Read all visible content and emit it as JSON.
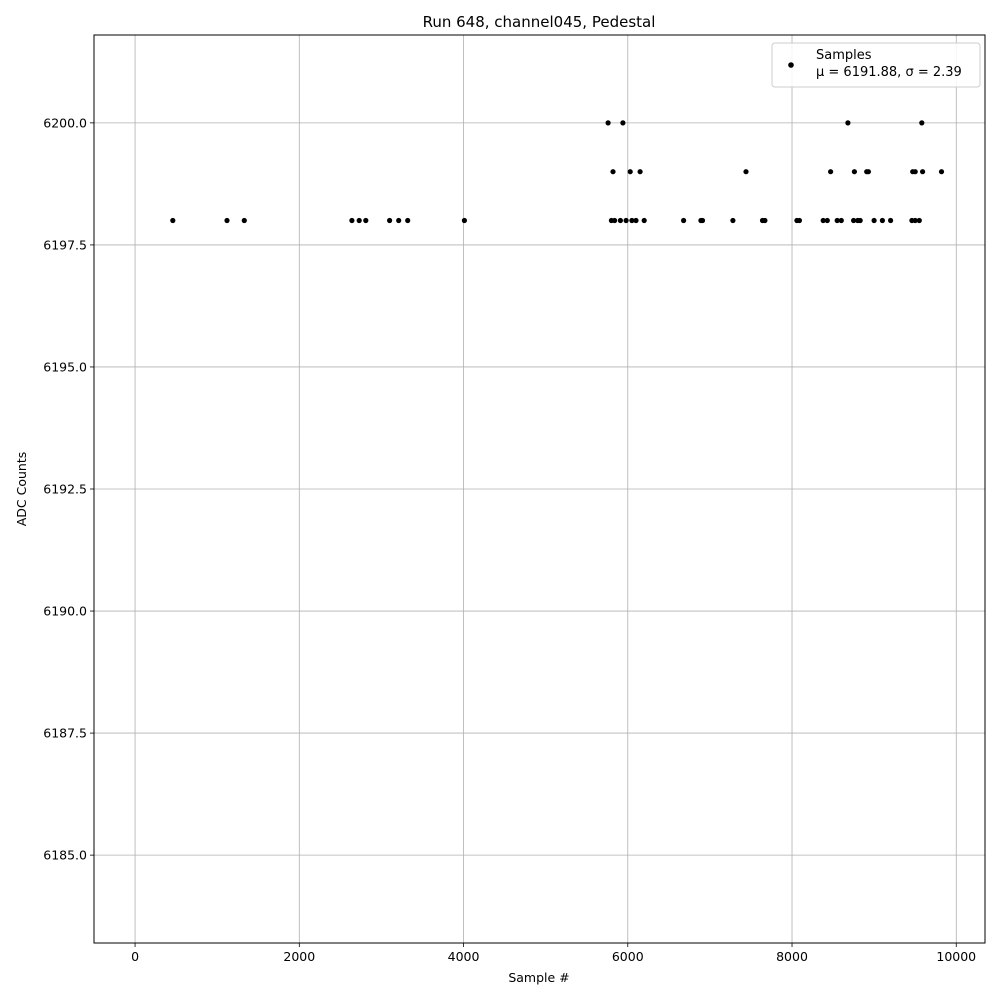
{
  "chart_data": {
    "type": "scatter",
    "title": "Run 648, channel045, Pedestal",
    "xlabel": "Sample #",
    "ylabel": "ADC Counts",
    "xlim": [
      -500,
      10350
    ],
    "ylim": [
      6183.2,
      6201.8
    ],
    "xticks": [
      0,
      2000,
      4000,
      6000,
      8000,
      10000
    ],
    "yticks": [
      6185.0,
      6187.5,
      6190.0,
      6192.5,
      6195.0,
      6197.5,
      6200.0
    ],
    "xtick_labels": [
      "0",
      "2000",
      "4000",
      "6000",
      "8000",
      "10000"
    ],
    "ytick_labels": [
      "6185.0",
      "6187.5",
      "6190.0",
      "6192.5",
      "6195.0",
      "6197.5",
      "6200.0"
    ],
    "grid": true,
    "legend_position": "top-right",
    "marker_color": "#000000",
    "series": [
      {
        "name": "Samples",
        "stats_label": "μ = 6191.88, σ = 2.39",
        "points": [
          [
            5760,
            6200
          ],
          [
            5940,
            6200
          ],
          [
            8680,
            6200
          ],
          [
            9580,
            6200
          ],
          [
            5820,
            6199
          ],
          [
            6030,
            6199
          ],
          [
            6150,
            6199
          ],
          [
            7440,
            6199
          ],
          [
            8470,
            6199
          ],
          [
            8760,
            6199
          ],
          [
            8910,
            6199
          ],
          [
            8930,
            6199
          ],
          [
            9470,
            6199
          ],
          [
            9500,
            6199
          ],
          [
            9590,
            6199
          ],
          [
            9820,
            6199
          ],
          [
            460,
            6198
          ],
          [
            1120,
            6198
          ],
          [
            1330,
            6198
          ],
          [
            2640,
            6198
          ],
          [
            2730,
            6198
          ],
          [
            2810,
            6198
          ],
          [
            3100,
            6198
          ],
          [
            3210,
            6198
          ],
          [
            3320,
            6198
          ],
          [
            4010,
            6198
          ],
          [
            5800,
            6198
          ],
          [
            5840,
            6198
          ],
          [
            5910,
            6198
          ],
          [
            5980,
            6198
          ],
          [
            6050,
            6198
          ],
          [
            6100,
            6198
          ],
          [
            6200,
            6198
          ],
          [
            6680,
            6198
          ],
          [
            6890,
            6198
          ],
          [
            6910,
            6198
          ],
          [
            7280,
            6198
          ],
          [
            7640,
            6198
          ],
          [
            7670,
            6198
          ],
          [
            8060,
            6198
          ],
          [
            8090,
            6198
          ],
          [
            8380,
            6198
          ],
          [
            8430,
            6198
          ],
          [
            8550,
            6198
          ],
          [
            8600,
            6198
          ],
          [
            8750,
            6198
          ],
          [
            8800,
            6198
          ],
          [
            8830,
            6198
          ],
          [
            9000,
            6198
          ],
          [
            9100,
            6198
          ],
          [
            9200,
            6198
          ],
          [
            9460,
            6198
          ],
          [
            9500,
            6198
          ],
          [
            9550,
            6198
          ]
        ]
      }
    ]
  }
}
